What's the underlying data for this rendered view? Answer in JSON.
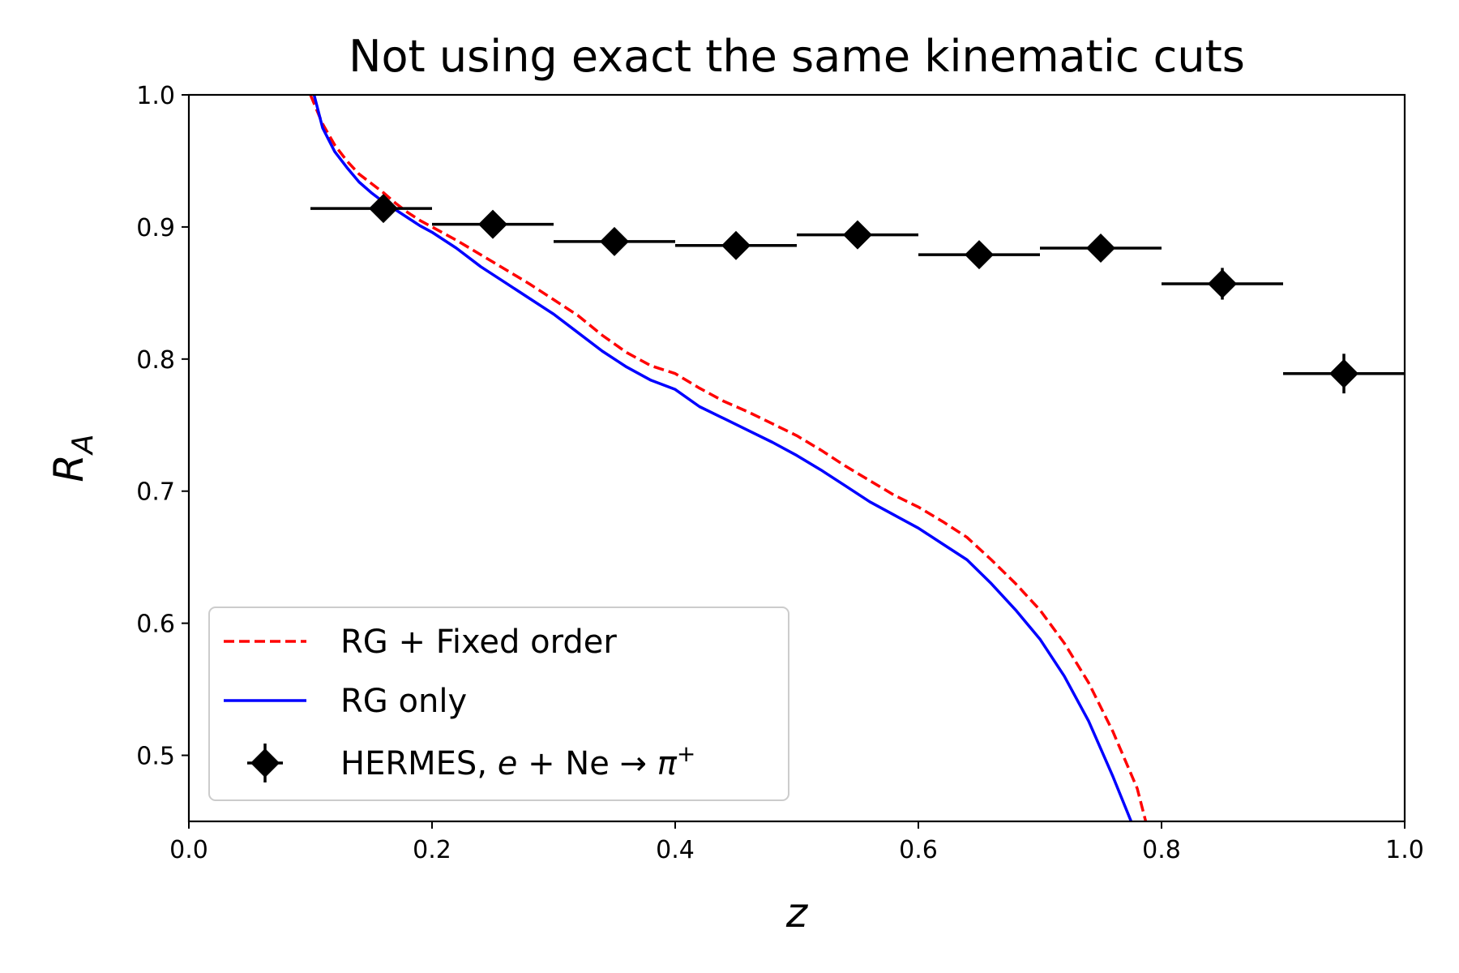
{
  "chart_data": {
    "type": "line",
    "title": "Not using exact the same kinematic cuts",
    "xlabel": "z",
    "ylabel": "R",
    "ylabel_sub": "A",
    "xlim": [
      0.0,
      1.0
    ],
    "ylim": [
      0.45,
      1.0
    ],
    "xticks": [
      0.0,
      0.2,
      0.4,
      0.6,
      0.8,
      1.0
    ],
    "xtick_labels": [
      "0.0",
      "0.2",
      "0.4",
      "0.6",
      "0.8",
      "1.0"
    ],
    "yticks": [
      0.5,
      0.6,
      0.7,
      0.8,
      0.9,
      1.0
    ],
    "ytick_labels": [
      "0.5",
      "0.6",
      "0.7",
      "0.8",
      "0.9",
      "1.0"
    ],
    "grid": false,
    "legend_position": "lower-left",
    "series": [
      {
        "name": "RG + Fixed order",
        "style": "dashed",
        "color": "#ff0000",
        "x": [
          0.1,
          0.11,
          0.12,
          0.13,
          0.14,
          0.15,
          0.16,
          0.17,
          0.18,
          0.19,
          0.2,
          0.22,
          0.24,
          0.26,
          0.28,
          0.3,
          0.32,
          0.34,
          0.36,
          0.38,
          0.4,
          0.42,
          0.44,
          0.46,
          0.48,
          0.5,
          0.52,
          0.54,
          0.56,
          0.58,
          0.6,
          0.62,
          0.64,
          0.66,
          0.68,
          0.7,
          0.72,
          0.74,
          0.76,
          0.78,
          0.787
        ],
        "y": [
          1.0,
          0.978,
          0.962,
          0.95,
          0.94,
          0.933,
          0.926,
          0.918,
          0.911,
          0.905,
          0.9,
          0.89,
          0.879,
          0.868,
          0.857,
          0.845,
          0.833,
          0.818,
          0.805,
          0.795,
          0.789,
          0.778,
          0.768,
          0.76,
          0.751,
          0.742,
          0.731,
          0.719,
          0.708,
          0.697,
          0.688,
          0.677,
          0.665,
          0.648,
          0.63,
          0.61,
          0.585,
          0.555,
          0.518,
          0.475,
          0.45
        ]
      },
      {
        "name": "RG only",
        "style": "solid",
        "color": "#0000ff",
        "x": [
          0.103,
          0.11,
          0.12,
          0.13,
          0.14,
          0.15,
          0.16,
          0.17,
          0.18,
          0.19,
          0.2,
          0.22,
          0.24,
          0.26,
          0.28,
          0.3,
          0.32,
          0.34,
          0.36,
          0.38,
          0.4,
          0.42,
          0.44,
          0.46,
          0.48,
          0.5,
          0.52,
          0.54,
          0.56,
          0.58,
          0.6,
          0.62,
          0.64,
          0.66,
          0.68,
          0.7,
          0.72,
          0.74,
          0.76,
          0.775
        ],
        "y": [
          1.0,
          0.975,
          0.957,
          0.945,
          0.934,
          0.926,
          0.919,
          0.913,
          0.907,
          0.901,
          0.896,
          0.884,
          0.87,
          0.858,
          0.846,
          0.834,
          0.82,
          0.806,
          0.794,
          0.784,
          0.777,
          0.764,
          0.755,
          0.746,
          0.737,
          0.727,
          0.716,
          0.704,
          0.692,
          0.682,
          0.672,
          0.66,
          0.648,
          0.63,
          0.61,
          0.588,
          0.56,
          0.526,
          0.484,
          0.45
        ]
      },
      {
        "name": "HERMES, e + Ne → π⁺",
        "style": "errorbar",
        "color": "#000000",
        "marker": "diamond",
        "x": [
          0.16,
          0.25,
          0.35,
          0.45,
          0.55,
          0.65,
          0.75,
          0.85,
          0.95
        ],
        "y": [
          0.914,
          0.902,
          0.889,
          0.886,
          0.894,
          0.879,
          0.884,
          0.857,
          0.789
        ],
        "xerr_low": [
          0.1,
          0.2,
          0.3,
          0.4,
          0.5,
          0.6,
          0.7,
          0.8,
          0.9
        ],
        "xerr_high": [
          0.2,
          0.3,
          0.4,
          0.5,
          0.6,
          0.7,
          0.8,
          0.9,
          1.0
        ],
        "yerr": [
          0.006,
          0.006,
          0.006,
          0.006,
          0.006,
          0.006,
          0.006,
          0.012,
          0.015
        ]
      }
    ],
    "legend": [
      {
        "label": "RG + Fixed order"
      },
      {
        "label": "RG only"
      },
      {
        "label_prefix": "HERMES, ",
        "label_e": "e",
        "label_mid": " + Ne → ",
        "label_pi": "π",
        "label_sup": "+"
      }
    ]
  }
}
